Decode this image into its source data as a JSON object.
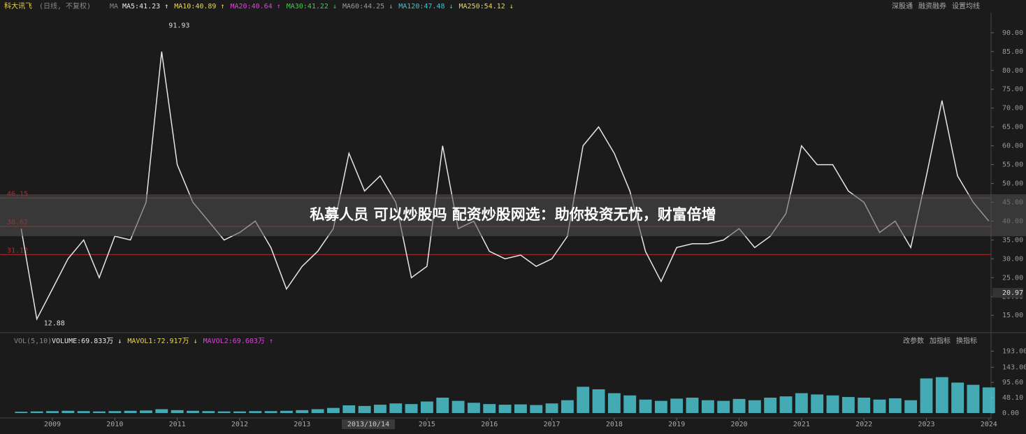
{
  "header": {
    "stock": "科大讯飞",
    "mode": "(日线, 不复权)",
    "ma_label": "MA",
    "mas": [
      {
        "text": "MA5:41.23 ↑",
        "color": "#e8e8e8"
      },
      {
        "text": "MA10:40.89 ↑",
        "color": "#e8d84a"
      },
      {
        "text": "MA20:40.64 ↑",
        "color": "#e040e0"
      },
      {
        "text": "MA30:41.22 ↓",
        "color": "#3ad04a"
      },
      {
        "text": "MA60:44.25 ↓",
        "color": "#999999"
      },
      {
        "text": "MA120:47.48 ↓",
        "color": "#30c8d8"
      },
      {
        "text": "MA250:54.12 ↓",
        "color": "#e8d84a"
      }
    ],
    "links": [
      "深股通",
      "融资融券",
      "设置均线"
    ]
  },
  "banner": "私募人员 可以炒股吗 配资炒股网选：助你投资无忧，财富倍增",
  "volume_header": {
    "label": "VOL(5,10)",
    "items": [
      {
        "text": "VOLUME:69.833万 ↓",
        "color": "#e8e8e8"
      },
      {
        "text": "MAVOL1:72.917万 ↓",
        "color": "#e8d84a"
      },
      {
        "text": "MAVOL2:69.603万 ↑",
        "color": "#e040e0"
      }
    ],
    "links": [
      "改参数",
      "加指标",
      "换指标"
    ]
  },
  "cursor_label": "2013/10/14",
  "chart_data": [
    {
      "type": "line",
      "ylim": [
        13,
        92.2
      ],
      "yticks": [
        {
          "value": 15,
          "label": "15.00"
        },
        {
          "value": 20,
          "label": "20.00"
        },
        {
          "value": 25,
          "label": "25.00"
        },
        {
          "value": 30,
          "label": "30.00"
        },
        {
          "value": 35,
          "label": "35.00"
        },
        {
          "value": 40,
          "label": "40.00"
        },
        {
          "value": 45,
          "label": "45.00"
        },
        {
          "value": 50,
          "label": "50.00"
        },
        {
          "value": 55,
          "label": "55.00"
        },
        {
          "value": 60,
          "label": "60.00"
        },
        {
          "value": 65,
          "label": "65.00"
        },
        {
          "value": 70,
          "label": "70.00"
        },
        {
          "value": 75,
          "label": "75.00"
        },
        {
          "value": 80,
          "label": "80.00"
        },
        {
          "value": 85,
          "label": "85.00"
        },
        {
          "value": 90,
          "label": "90.00"
        }
      ],
      "series": [
        {
          "color": "#e6e6e6",
          "values": [
            38,
            14,
            22,
            30,
            35,
            25,
            36,
            35,
            45,
            85,
            55,
            45,
            40,
            35,
            37,
            40,
            33,
            22,
            28,
            32,
            38,
            58,
            48,
            52,
            45,
            25,
            28,
            60,
            38,
            40,
            32,
            30,
            31,
            28,
            30,
            36,
            60,
            65,
            58,
            48,
            32,
            24,
            33,
            34,
            34,
            35,
            38,
            33,
            36,
            42,
            60,
            55,
            55,
            48,
            45,
            37,
            40,
            33,
            52,
            72,
            52,
            45,
            40
          ]
        }
      ],
      "hlines": [
        46.15,
        38.62,
        31.12
      ],
      "annotations": [
        {
          "value": 91.93,
          "index": 9
        },
        {
          "value": 12.88,
          "index": 1
        }
      ],
      "last_price": 20.97
    },
    {
      "type": "bar",
      "ylim": [
        0,
        205
      ],
      "yticks": [
        {
          "value": 0,
          "label": "0.00"
        },
        {
          "value": 48.1,
          "label": "48.10"
        },
        {
          "value": 95.6,
          "label": "95.60"
        },
        {
          "value": 143,
          "label": "143.00"
        },
        {
          "value": 193,
          "label": "193.00"
        }
      ],
      "categories": [
        null,
        null,
        "2009",
        null,
        null,
        null,
        "2010",
        null,
        null,
        null,
        "2011",
        null,
        null,
        null,
        "2012",
        null,
        null,
        null,
        "2013",
        null,
        null,
        null,
        null,
        null,
        null,
        null,
        "2015",
        null,
        null,
        null,
        "2016",
        null,
        null,
        null,
        "2017",
        null,
        null,
        null,
        "2018",
        null,
        null,
        null,
        "2019",
        null,
        null,
        null,
        "2020",
        null,
        null,
        null,
        "2021",
        null,
        null,
        null,
        "2022",
        null,
        null,
        null,
        "2023",
        null,
        null,
        null,
        "2024"
      ],
      "series": [
        {
          "color": "#4fd0dc",
          "values": [
            4,
            5,
            6,
            7,
            6,
            5,
            6,
            7,
            8,
            12,
            9,
            7,
            6,
            5,
            5,
            6,
            6,
            7,
            9,
            12,
            16,
            24,
            22,
            26,
            30,
            28,
            36,
            48,
            38,
            32,
            28,
            26,
            27,
            25,
            30,
            40,
            82,
            74,
            62,
            55,
            42,
            38,
            45,
            48,
            40,
            38,
            44,
            40,
            48,
            52,
            62,
            58,
            55,
            50,
            48,
            42,
            46,
            40,
            108,
            112,
            95,
            88,
            80
          ]
        }
      ]
    }
  ]
}
